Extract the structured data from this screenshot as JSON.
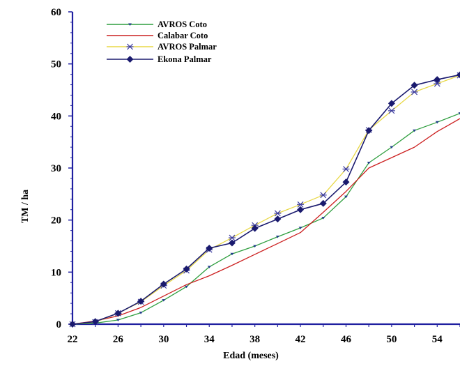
{
  "chart_data": {
    "type": "line",
    "xlabel": "Edad (meses)",
    "ylabel": "TM / ha",
    "xlim": [
      22,
      56
    ],
    "ylim": [
      0,
      60
    ],
    "x_ticks": [
      22,
      26,
      30,
      34,
      38,
      42,
      46,
      50,
      54
    ],
    "y_ticks": [
      0,
      10,
      20,
      30,
      40,
      50,
      60
    ],
    "grid": false,
    "legend_position": "top-left",
    "series": [
      {
        "name": "AVROS Coto",
        "color": "#2e9e3e",
        "marker": "small-triangle",
        "x": [
          22,
          24,
          26,
          28,
          30,
          32,
          34,
          36,
          38,
          40,
          42,
          44,
          46,
          48,
          50,
          52,
          54,
          56
        ],
        "y": [
          0,
          0.2,
          0.8,
          2.2,
          4.6,
          7.2,
          11.0,
          13.5,
          15.0,
          16.8,
          18.5,
          20.4,
          24.5,
          31.0,
          34.0,
          37.2,
          38.8,
          40.5
        ]
      },
      {
        "name": "Calabar Coto",
        "color": "#cc2020",
        "marker": "none",
        "x": [
          22,
          24,
          26,
          28,
          30,
          32,
          34,
          36,
          38,
          40,
          42,
          44,
          46,
          48,
          50,
          52,
          54,
          56
        ],
        "y": [
          0,
          0.6,
          1.6,
          3.2,
          5.4,
          7.6,
          9.3,
          11.3,
          13.4,
          15.5,
          17.6,
          21.5,
          25.5,
          30.0,
          32.0,
          34.0,
          37.0,
          39.5
        ]
      },
      {
        "name": "AVROS Palmar",
        "color": "#e8d846",
        "marker": "asterisk",
        "x": [
          22,
          24,
          26,
          28,
          30,
          32,
          34,
          36,
          38,
          40,
          42,
          44,
          46,
          48,
          50,
          52,
          54,
          56
        ],
        "y": [
          0,
          0.4,
          2.1,
          4.3,
          7.4,
          10.3,
          14.3,
          16.6,
          19.0,
          21.3,
          23.0,
          24.8,
          29.8,
          37.3,
          41.0,
          44.6,
          46.2,
          47.8
        ]
      },
      {
        "name": "Ekona Palmar",
        "color": "#1a1a6e",
        "marker": "diamond",
        "x": [
          22,
          24,
          26,
          28,
          30,
          32,
          34,
          36,
          38,
          40,
          42,
          44,
          46,
          48,
          50,
          52,
          54,
          56
        ],
        "y": [
          0,
          0.5,
          2.1,
          4.4,
          7.7,
          10.6,
          14.6,
          15.6,
          18.4,
          20.2,
          22.0,
          23.2,
          27.3,
          37.2,
          42.4,
          45.9,
          47.0,
          47.9
        ]
      }
    ]
  }
}
